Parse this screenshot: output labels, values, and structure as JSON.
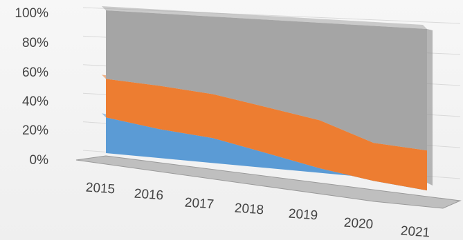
{
  "chart_data": {
    "type": "area",
    "stacked": "percent",
    "three_d": true,
    "title": "",
    "xlabel": "",
    "ylabel": "",
    "categories": [
      "2015",
      "2016",
      "2017",
      "2018",
      "2019",
      "2020",
      "2021"
    ],
    "y_ticks": [
      "0%",
      "20%",
      "40%",
      "60%",
      "80%",
      "100%"
    ],
    "ylim": [
      0,
      100
    ],
    "grid": true,
    "legend": "none",
    "series": [
      {
        "color": "#5b9bd5",
        "values": [
          25,
          20,
          17,
          10,
          3,
          -2,
          -5
        ]
      },
      {
        "color": "#ed7d31",
        "values": [
          27,
          30,
          30,
          31,
          32,
          25,
          26
        ]
      },
      {
        "color": "#a5a5a5",
        "values": [
          48,
          50,
          53,
          59,
          65,
          77,
          79
        ]
      }
    ]
  }
}
